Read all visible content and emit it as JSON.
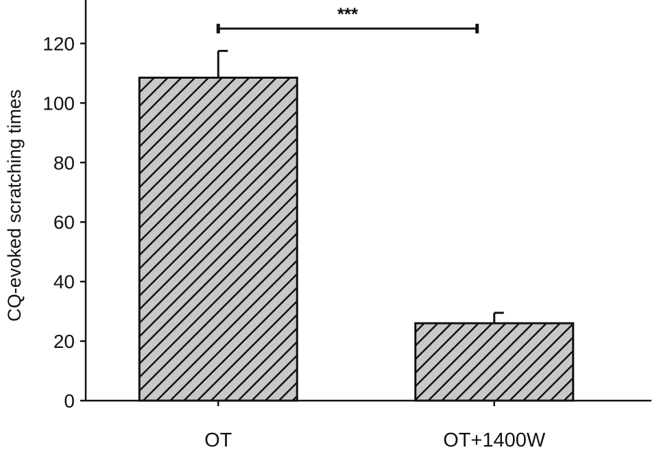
{
  "chart_data": {
    "type": "bar",
    "title": "",
    "xlabel": "",
    "ylabel": "CQ-evoked scratching times",
    "categories": [
      "OT",
      "OT+1400W"
    ],
    "values": [
      108.5,
      26
    ],
    "errors": [
      9,
      3.5
    ],
    "ylim": [
      0,
      130
    ],
    "yticks": [
      0,
      20,
      40,
      60,
      80,
      100,
      120
    ],
    "grid": false,
    "legend": "none",
    "bar_fill": "#c8c8c8",
    "hatch": "diagonal",
    "significance": {
      "from": "OT",
      "to": "OT+1400W",
      "label": "***",
      "y": 125
    }
  }
}
